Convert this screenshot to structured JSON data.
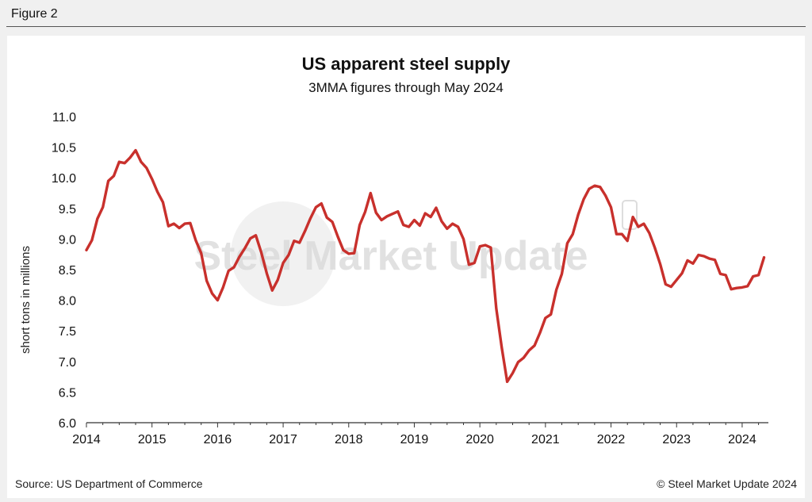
{
  "figure_label": "Figure 2",
  "source": "Source: US Department of Commerce",
  "copyright": "© Steel Market Update 2024",
  "watermark": "Steel Market Update",
  "colors": {
    "line": "#c8302c",
    "axis": "#333333",
    "watermark": "#d2d2d2"
  },
  "chart_data": {
    "type": "line",
    "title": "US apparent steel supply",
    "subtitle": "3MMA figures through May 2024",
    "xlabel": "",
    "ylabel": "short tons in millions",
    "ylim": [
      6.0,
      11.0
    ],
    "xlim": [
      2014.0,
      2024.4
    ],
    "yticks": [
      "6.0",
      "6.5",
      "7.0",
      "7.5",
      "8.0",
      "8.5",
      "9.0",
      "9.5",
      "10.0",
      "10.5",
      "11.0"
    ],
    "xticks": [
      "2014",
      "2015",
      "2016",
      "2017",
      "2018",
      "2019",
      "2020",
      "2021",
      "2022",
      "2023",
      "2024"
    ],
    "grid": false,
    "series": [
      {
        "name": "US apparent steel supply (3MMA)",
        "start": "2014-01",
        "values": [
          8.82,
          8.98,
          9.33,
          9.52,
          9.95,
          10.03,
          10.26,
          10.24,
          10.33,
          10.45,
          10.26,
          10.16,
          9.98,
          9.77,
          9.6,
          9.21,
          9.25,
          9.18,
          9.25,
          9.26,
          8.98,
          8.77,
          8.32,
          8.11,
          8.0,
          8.21,
          8.48,
          8.54,
          8.71,
          8.85,
          9.01,
          9.06,
          8.78,
          8.44,
          8.16,
          8.33,
          8.61,
          8.74,
          8.97,
          8.94,
          9.13,
          9.34,
          9.52,
          9.58,
          9.35,
          9.28,
          9.04,
          8.82,
          8.76,
          8.77,
          9.23,
          9.44,
          9.75,
          9.43,
          9.31,
          9.37,
          9.41,
          9.45,
          9.23,
          9.2,
          9.31,
          9.22,
          9.42,
          9.36,
          9.51,
          9.29,
          9.17,
          9.25,
          9.2,
          9.0,
          8.58,
          8.61,
          8.88,
          8.9,
          8.86,
          7.87,
          7.23,
          6.67,
          6.81,
          6.99,
          7.06,
          7.18,
          7.26,
          7.47,
          7.71,
          7.77,
          8.17,
          8.43,
          8.93,
          9.08,
          9.4,
          9.65,
          9.82,
          9.87,
          9.85,
          9.71,
          9.52,
          9.08,
          9.08,
          8.97,
          9.36,
          9.2,
          9.25,
          9.1,
          8.86,
          8.59,
          8.26,
          8.22,
          8.33,
          8.44,
          8.65,
          8.6,
          8.74,
          8.72,
          8.68,
          8.66,
          8.43,
          8.41,
          8.18,
          8.2,
          8.21,
          8.23,
          8.39,
          8.41,
          8.7
        ]
      }
    ]
  }
}
